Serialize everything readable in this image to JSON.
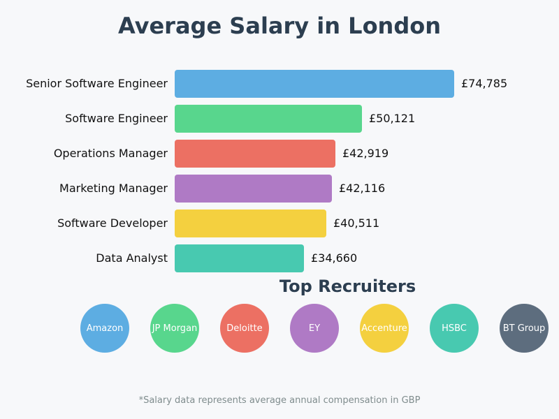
{
  "title": "Average Salary in London",
  "chart_data": {
    "type": "bar",
    "orientation": "horizontal",
    "title": "Average Salary in London",
    "xlabel": "",
    "ylabel": "",
    "currency": "GBP",
    "categories": [
      "Senior Software Engineer",
      "Software Engineer",
      "Operations Manager",
      "Marketing Manager",
      "Software Developer",
      "Data Analyst"
    ],
    "values": [
      74785,
      50121,
      42919,
      42116,
      40511,
      34660
    ],
    "value_labels": [
      "£74,785",
      "£50,121",
      "£42,919",
      "£42,116",
      "£40,511",
      "£34,660"
    ],
    "colors": [
      "#5dade2",
      "#58d68d",
      "#ec7063",
      "#af7ac5",
      "#f4d03f",
      "#48c9b0"
    ],
    "grid": false,
    "legend": null
  },
  "recruiters": {
    "title": "Top Recruiters",
    "items": [
      {
        "name": "Amazon",
        "color": "#5dade2"
      },
      {
        "name": "JP Morgan",
        "color": "#58d68d"
      },
      {
        "name": "Deloitte",
        "color": "#ec7063"
      },
      {
        "name": "EY",
        "color": "#af7ac5"
      },
      {
        "name": "Accenture",
        "color": "#f4d03f"
      },
      {
        "name": "HSBC",
        "color": "#48c9b0"
      },
      {
        "name": "BT Group",
        "color": "#5d6d7e"
      }
    ]
  },
  "footnote": "*Salary data represents average annual compensation in GBP"
}
